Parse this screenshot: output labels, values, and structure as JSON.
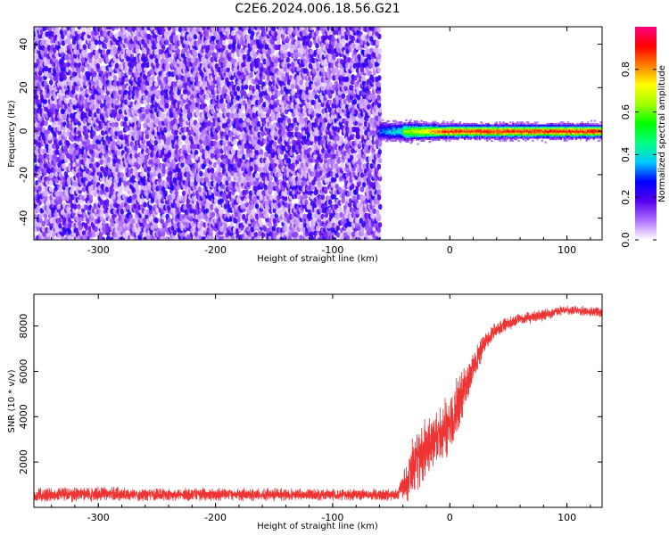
{
  "figure_title": "C2E6.2024.006.18.56.G21",
  "chart_data": [
    {
      "type": "heatmap",
      "title": "",
      "xlabel": "Height of straight line (km)",
      "ylabel": "Frequency (Hz)",
      "xlim": [
        -355,
        130
      ],
      "ylim": [
        -50,
        48
      ],
      "x_ticks": [
        -300,
        -200,
        -100,
        0,
        100
      ],
      "y_ticks": [
        -40,
        -20,
        0,
        20,
        40
      ],
      "colorbar": {
        "label": "Normalized spectral amplitude",
        "range": [
          0,
          1
        ],
        "ticks": [
          0.0,
          0.2,
          0.4,
          0.6,
          0.8
        ],
        "colormap": [
          "#ffffff",
          "#b070ff",
          "#5500ee",
          "#0000ff",
          "#00c8ff",
          "#00ff80",
          "#00ff00",
          "#a0ff00",
          "#ffff00",
          "#ff8000",
          "#ff0000",
          "#ff0080"
        ]
      },
      "regions": [
        {
          "x_range": [
            -355,
            -60
          ],
          "description_value": "broadband noise, amplitude ~0.05-0.3 across all frequencies"
        },
        {
          "x_range": [
            -60,
            130
          ],
          "center_frequency": 0,
          "half_width_hz": 3,
          "peak_amplitude": 0.9
        }
      ]
    },
    {
      "type": "line",
      "title": "",
      "xlabel": "Height of straight line (km)",
      "ylabel": "SNR (10 * v/v)",
      "xlim": [
        -355,
        130
      ],
      "ylim": [
        0,
        9400
      ],
      "x_ticks": [
        -300,
        -200,
        -100,
        0,
        100
      ],
      "y_ticks": [
        2000,
        4000,
        6000,
        8000
      ],
      "line_color": "#ee3333",
      "series_profile": {
        "x": [
          -355,
          -300,
          -200,
          -100,
          -45,
          -40,
          -35,
          -30,
          -20,
          -10,
          0,
          10,
          20,
          30,
          40,
          60,
          80,
          100,
          130
        ],
        "y_mean": [
          550,
          580,
          560,
          560,
          550,
          900,
          1300,
          2000,
          2600,
          3100,
          3700,
          4800,
          6200,
          7300,
          7900,
          8300,
          8500,
          8700,
          8600
        ],
        "noise_amplitude": [
          350,
          350,
          320,
          300,
          300,
          700,
          1300,
          1500,
          1600,
          1600,
          1500,
          1300,
          800,
          500,
          400,
          300,
          300,
          250,
          250
        ]
      }
    }
  ]
}
